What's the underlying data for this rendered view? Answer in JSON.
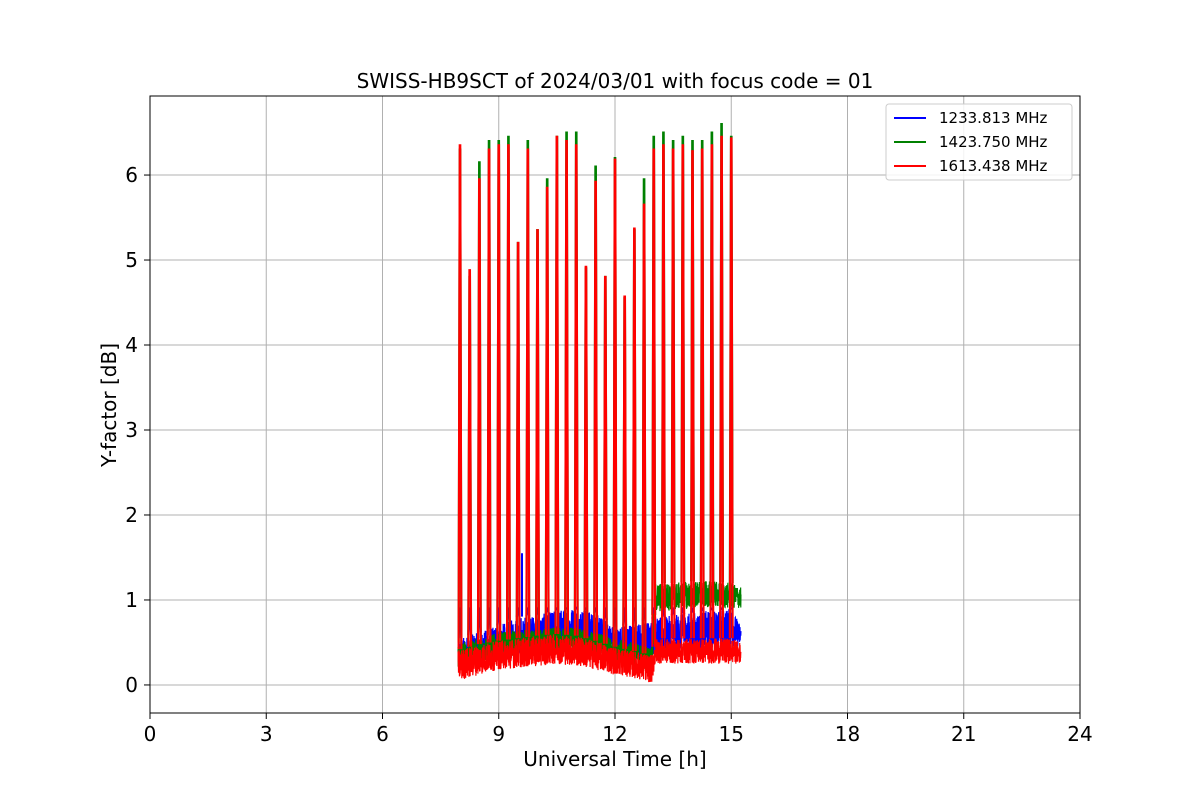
{
  "chart_data": {
    "type": "line",
    "title": "SWISS-HB9SCT of 2024/03/01 with focus code = 01",
    "xlabel": "Universal Time [h]",
    "ylabel": "Y-factor [dB]",
    "xlim": [
      0,
      24
    ],
    "ylim": [
      -0.33,
      6.93
    ],
    "xticks": [
      0,
      3,
      6,
      9,
      12,
      15,
      18,
      21,
      24
    ],
    "yticks": [
      0,
      1,
      2,
      3,
      4,
      5,
      6
    ],
    "grid": true,
    "legend_position": "top-right",
    "data_range_x": [
      7.95,
      15.25
    ],
    "calibration_bursts": {
      "x": [
        8.0,
        8.25,
        8.5,
        8.75,
        9.0,
        9.25,
        9.5,
        9.75,
        10.0,
        10.25,
        10.5,
        10.75,
        11.0,
        11.25,
        11.5,
        11.75,
        12.0,
        12.25,
        12.5,
        12.75,
        13.0,
        13.25,
        13.5,
        13.75,
        14.0,
        14.25,
        14.5,
        14.75,
        15.0
      ],
      "peak_1423": [
        6.3,
        4.8,
        6.15,
        6.4,
        6.4,
        6.45,
        5.2,
        6.4,
        5.35,
        5.95,
        6.45,
        6.5,
        6.5,
        4.9,
        6.1,
        4.8,
        6.2,
        4.55,
        5.35,
        5.95,
        6.45,
        6.5,
        6.4,
        6.45,
        6.4,
        6.4,
        6.5,
        6.6,
        6.45
      ],
      "peak_1613": [
        6.35,
        4.88,
        5.95,
        6.3,
        6.35,
        6.35,
        5.2,
        6.3,
        5.35,
        5.85,
        6.45,
        6.4,
        6.35,
        4.92,
        5.92,
        4.8,
        6.18,
        4.57,
        5.37,
        5.65,
        6.3,
        6.35,
        6.3,
        6.35,
        6.28,
        6.3,
        6.35,
        6.45,
        6.43
      ]
    },
    "series": [
      {
        "name": "1233.813 MHz",
        "color": "#0000ff",
        "baseline_x": [
          8.0,
          8.5,
          9.0,
          9.5,
          10.0,
          10.5,
          11.0,
          11.5,
          12.0,
          12.5,
          13.0,
          13.5,
          14.0,
          14.5,
          15.0,
          15.25
        ],
        "baseline_low": [
          0.15,
          0.25,
          0.3,
          0.35,
          0.38,
          0.4,
          0.42,
          0.38,
          0.3,
          0.3,
          0.35,
          0.38,
          0.4,
          0.42,
          0.45,
          0.45
        ],
        "baseline_high": [
          0.55,
          0.62,
          0.7,
          0.8,
          0.82,
          0.88,
          0.92,
          0.85,
          0.68,
          0.72,
          0.78,
          0.82,
          0.85,
          0.88,
          0.9,
          0.7
        ],
        "extra_spikes": [
          [
            9.6,
            1.55
          ]
        ]
      },
      {
        "name": "1423.750 MHz",
        "color": "#008000",
        "baseline_x": [
          8.0,
          8.5,
          9.0,
          9.5,
          10.0,
          10.5,
          11.0,
          11.5,
          12.0,
          12.5,
          12.95,
          13.05,
          13.5,
          14.0,
          14.5,
          15.0,
          15.25
        ],
        "baseline_low": [
          0.2,
          0.25,
          0.3,
          0.33,
          0.35,
          0.38,
          0.38,
          0.35,
          0.28,
          0.22,
          0.15,
          0.85,
          0.88,
          0.9,
          0.92,
          0.9,
          0.9
        ],
        "baseline_high": [
          0.5,
          0.55,
          0.62,
          0.65,
          0.65,
          0.68,
          0.68,
          0.62,
          0.55,
          0.5,
          0.45,
          1.2,
          1.2,
          1.22,
          1.22,
          1.2,
          1.15
        ],
        "extra_spikes": []
      },
      {
        "name": "1613.438 MHz",
        "color": "#ff0000",
        "baseline_x": [
          8.0,
          8.5,
          9.0,
          9.5,
          10.0,
          10.5,
          11.0,
          11.5,
          12.0,
          12.5,
          12.95,
          13.05,
          13.5,
          14.0,
          14.5,
          15.0,
          15.25
        ],
        "baseline_low": [
          0.05,
          0.12,
          0.18,
          0.2,
          0.22,
          0.25,
          0.22,
          0.18,
          0.12,
          0.08,
          0.02,
          0.25,
          0.25,
          0.25,
          0.25,
          0.25,
          0.25
        ],
        "baseline_high": [
          0.42,
          0.48,
          0.52,
          0.55,
          0.58,
          0.6,
          0.58,
          0.52,
          0.45,
          0.4,
          0.35,
          0.55,
          0.55,
          0.55,
          0.55,
          0.55,
          0.5
        ],
        "extra_spikes": []
      }
    ]
  }
}
